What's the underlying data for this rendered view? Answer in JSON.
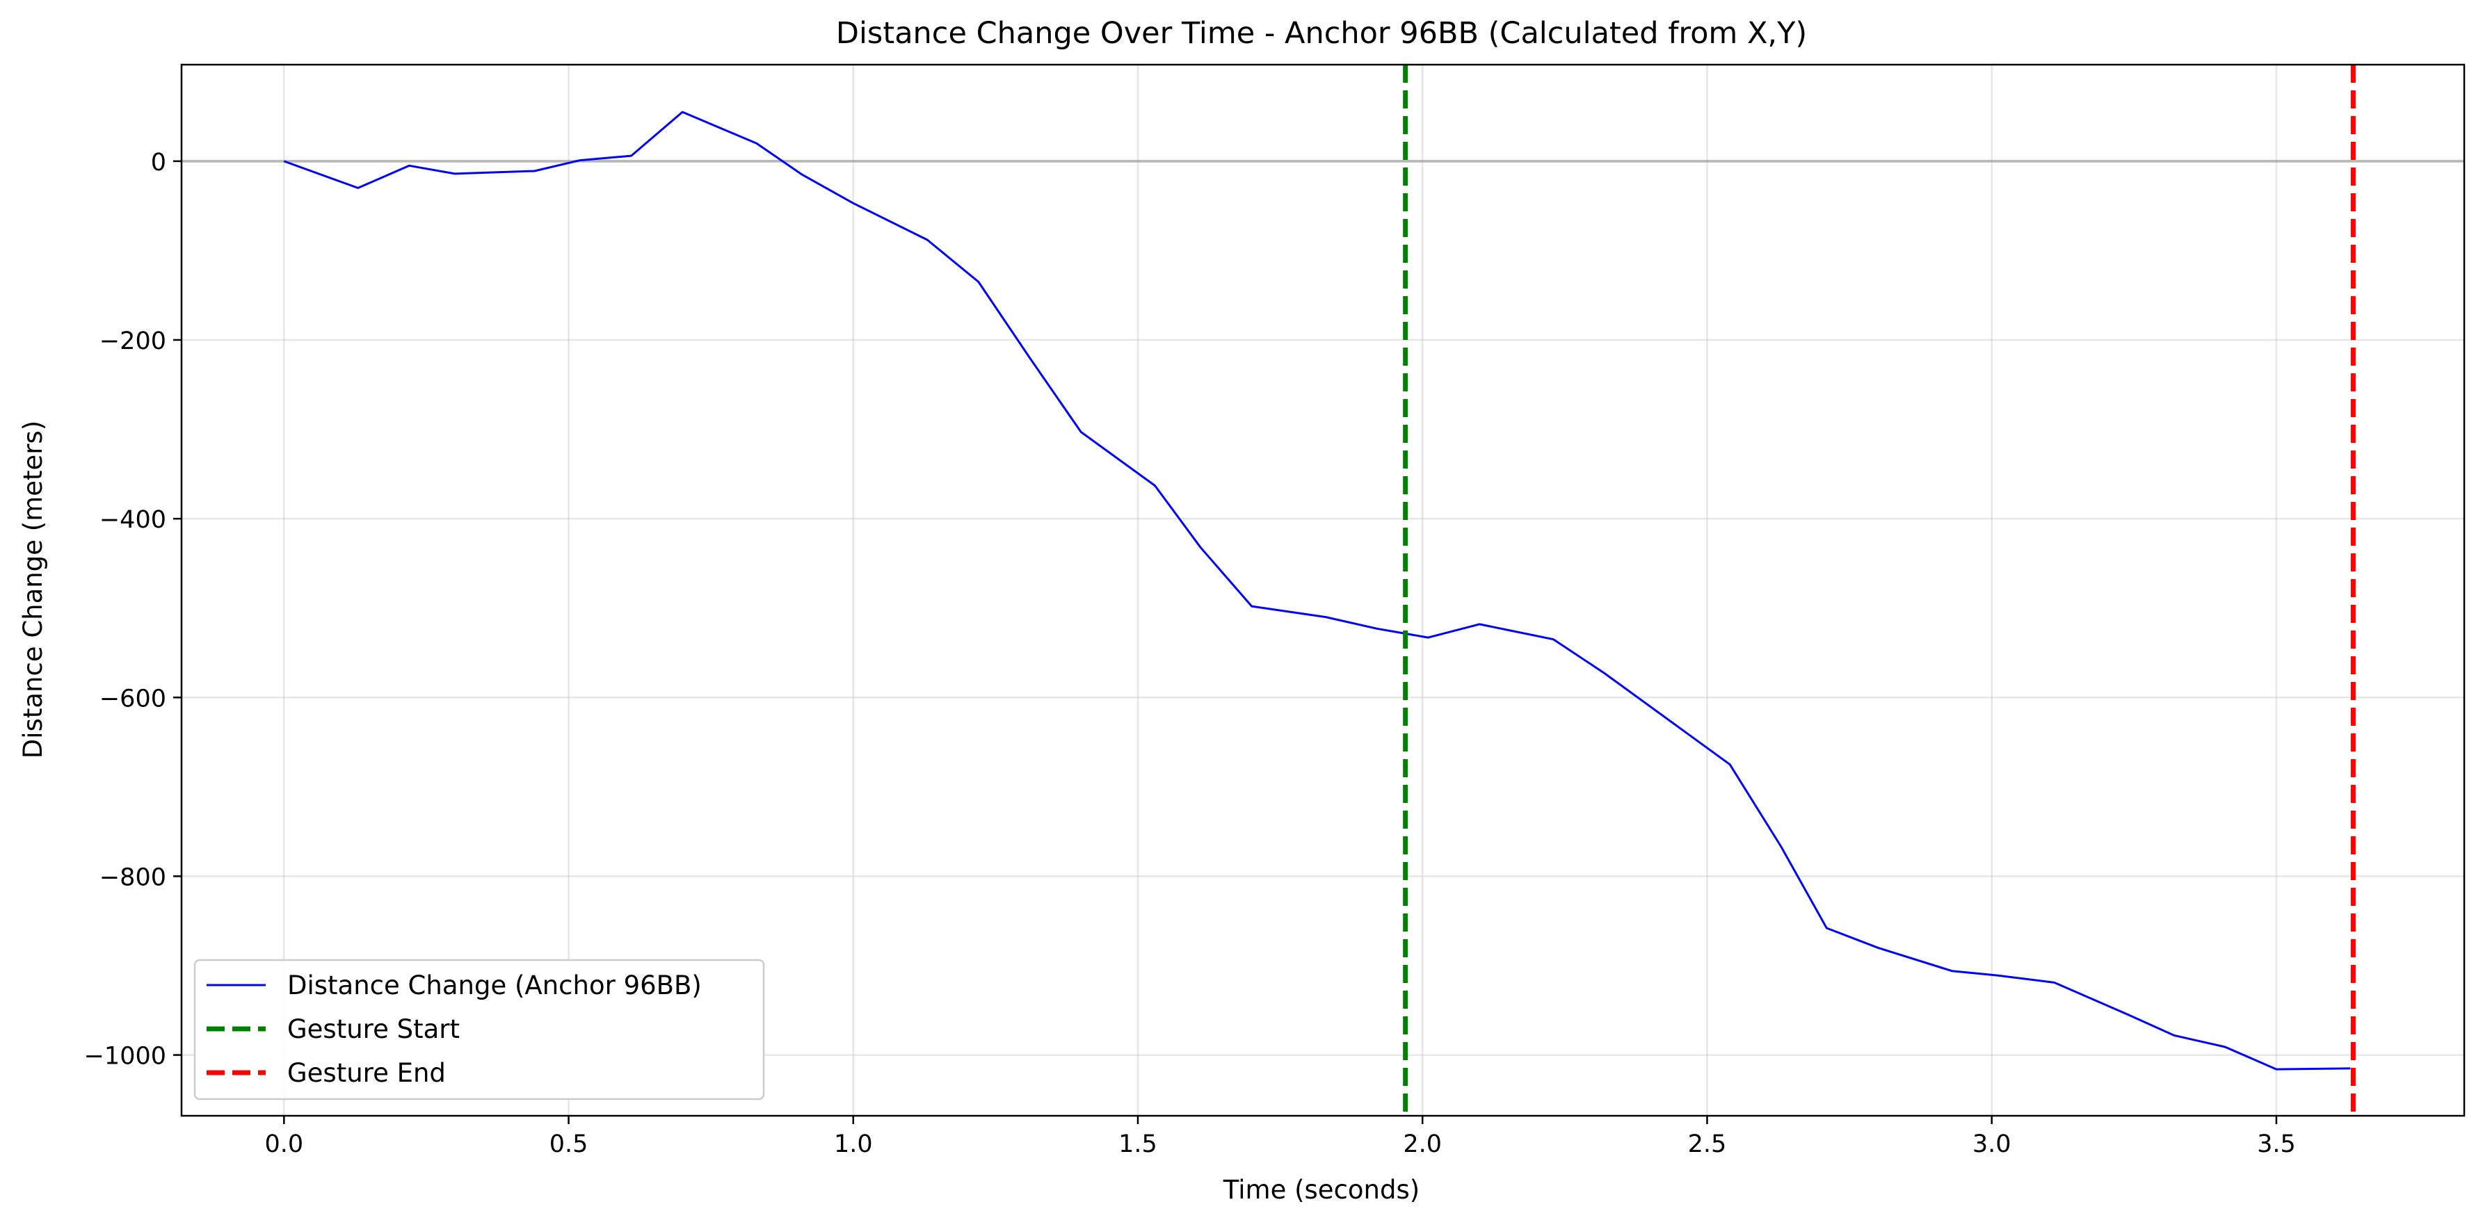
{
  "chart_data": {
    "type": "line",
    "title": "Distance Change Over Time - Anchor 96BB (Calculated from X,Y)",
    "xlabel": "Time (seconds)",
    "ylabel": "Distance Change (meters)",
    "xlim": [
      -0.18,
      3.83
    ],
    "ylim": [
      -1068,
      108
    ],
    "xticks": [
      0.0,
      0.5,
      1.0,
      1.5,
      2.0,
      2.5,
      3.0,
      3.5
    ],
    "xtick_labels": [
      "0.0",
      "0.5",
      "1.0",
      "1.5",
      "2.0",
      "2.5",
      "3.0",
      "3.5"
    ],
    "yticks": [
      0,
      -200,
      -400,
      -600,
      -800,
      -1000
    ],
    "ytick_labels": [
      "0",
      "−200",
      "−400",
      "−600",
      "−800",
      "−1000"
    ],
    "grid": true,
    "legend_position": "lower-left",
    "zero_line": 0,
    "series": [
      {
        "name": "Distance Change (Anchor 96BB)",
        "color": "#0000ff",
        "style": "solid",
        "x": [
          0.0,
          0.13,
          0.22,
          0.3,
          0.44,
          0.52,
          0.61,
          0.7,
          0.83,
          0.91,
          1.0,
          1.13,
          1.22,
          1.31,
          1.4,
          1.53,
          1.61,
          1.7,
          1.83,
          1.92,
          2.01,
          2.1,
          2.23,
          2.32,
          2.54,
          2.63,
          2.71,
          2.8,
          2.93,
          3.01,
          3.11,
          3.24,
          3.32,
          3.41,
          3.5,
          3.63
        ],
        "y": [
          0,
          -30,
          -5,
          -14,
          -11,
          1,
          6,
          55,
          20,
          -15,
          -47,
          -88,
          -135,
          -220,
          -303,
          -363,
          -432,
          -498,
          -510,
          -523,
          -533,
          -518,
          -535,
          -573,
          -675,
          -767,
          -858,
          -880,
          -906,
          -911,
          -919,
          -955,
          -978,
          -991,
          -1016,
          -1015
        ]
      }
    ],
    "vlines": [
      {
        "name": "Gesture Start",
        "x": 1.97,
        "color": "#008000",
        "style": "dashed"
      },
      {
        "name": "Gesture End",
        "x": 3.635,
        "color": "#ff0000",
        "style": "dashed"
      }
    ]
  }
}
